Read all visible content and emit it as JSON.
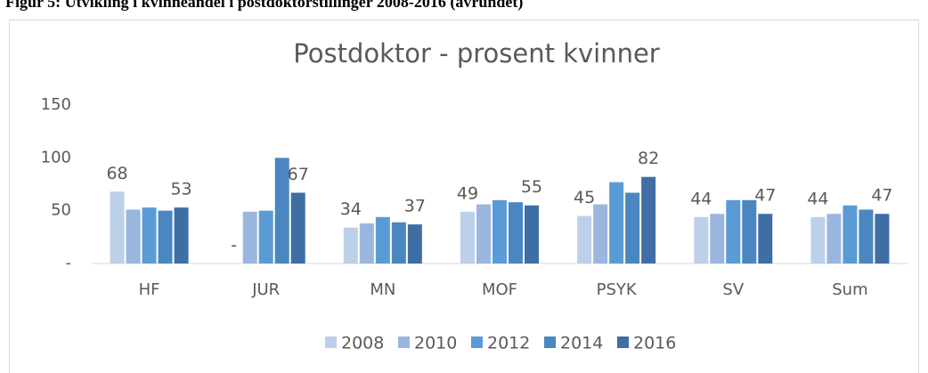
{
  "caption": "Figur 5: Utvikling i kvinneandel i postdoktorstillinger 2008-2016 (avrundet)",
  "chart_data": {
    "type": "bar",
    "title": "Postdoktor - prosent kvinner",
    "categories": [
      "HF",
      "JUR",
      "MN",
      "MOF",
      "PSYK",
      "SV",
      "Sum"
    ],
    "series": [
      {
        "name": "2008",
        "color": "#bdd0ea",
        "values": [
          68,
          0,
          34,
          49,
          45,
          44,
          44
        ],
        "value_labels": [
          "68",
          "-",
          "34",
          "49",
          "45",
          "44",
          "44"
        ]
      },
      {
        "name": "2010",
        "color": "#9ab6df",
        "values": [
          51,
          49,
          38,
          56,
          56,
          47,
          47
        ]
      },
      {
        "name": "2012",
        "color": "#5b9bd5",
        "values": [
          53,
          50,
          44,
          60,
          77,
          60,
          55
        ]
      },
      {
        "name": "2014",
        "color": "#4a86c0",
        "values": [
          50,
          100,
          39,
          58,
          67,
          60,
          51
        ]
      },
      {
        "name": "2016",
        "color": "#3f6ea5",
        "values": [
          53,
          67,
          37,
          55,
          82,
          47,
          47
        ],
        "value_labels": [
          "53",
          "67",
          "37",
          "55",
          "82",
          "47",
          "47"
        ]
      }
    ],
    "ylim": [
      0,
      150
    ],
    "yticks": [
      {
        "value": 0,
        "label": "-"
      },
      50,
      100,
      150
    ],
    "grid": false,
    "legend": "bottom"
  }
}
